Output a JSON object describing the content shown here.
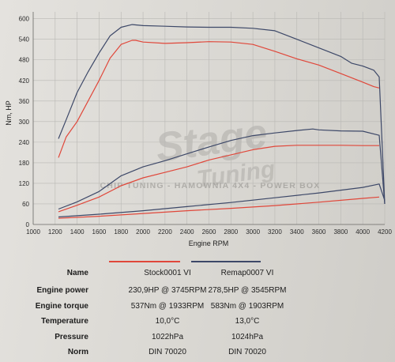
{
  "watermark": {
    "logo_text": "Stage Tuning",
    "line": "CHIP TUNING - HAMOWNIA 4X4 - POWER BOX"
  },
  "colors": {
    "stock": "#e0473a",
    "remap": "#3d4868",
    "grid": "#b9b8b4"
  },
  "chart_data": {
    "type": "line",
    "xlabel": "Engine RPM",
    "ylabel": "Nm, HP",
    "xlim": [
      1000,
      4200
    ],
    "ylim": [
      0,
      620
    ],
    "x_ticks": [
      1000,
      1200,
      1400,
      1600,
      1800,
      2000,
      2200,
      2400,
      2600,
      2800,
      3000,
      3200,
      3400,
      3600,
      3800,
      4000,
      4200
    ],
    "y_ticks": [
      0,
      60,
      120,
      180,
      240,
      300,
      360,
      420,
      480,
      540,
      600
    ],
    "grid": true,
    "series": [
      {
        "name": "Stock0001 VI",
        "quantity": "torque",
        "x": [
          1230,
          1300,
          1400,
          1500,
          1600,
          1700,
          1800,
          1900,
          1933,
          2000,
          2200,
          2400,
          2600,
          2800,
          3000,
          3200,
          3400,
          3600,
          3800,
          4000,
          4100,
          4150
        ],
        "y": [
          195,
          255,
          300,
          360,
          420,
          485,
          525,
          537,
          537,
          532,
          528,
          530,
          533,
          532,
          525,
          505,
          483,
          465,
          440,
          415,
          402,
          398
        ]
      },
      {
        "name": "Remap0007 VI",
        "quantity": "torque",
        "x": [
          1230,
          1300,
          1400,
          1500,
          1600,
          1700,
          1800,
          1900,
          1903,
          2000,
          2200,
          2400,
          2600,
          2800,
          3000,
          3200,
          3400,
          3600,
          3800,
          3900,
          4000,
          4100,
          4150,
          4200
        ],
        "y": [
          250,
          305,
          385,
          445,
          500,
          550,
          575,
          583,
          583,
          580,
          578,
          576,
          575,
          575,
          572,
          565,
          540,
          515,
          490,
          470,
          462,
          450,
          430,
          60
        ]
      },
      {
        "name": "Stock0001 VI",
        "quantity": "power",
        "x": [
          1230,
          1400,
          1600,
          1800,
          2000,
          2200,
          2400,
          2600,
          2800,
          3000,
          3200,
          3400,
          3600,
          3745,
          3800,
          4000,
          4150
        ],
        "y": [
          37,
          56,
          80,
          113,
          136,
          152,
          168,
          188,
          203,
          218,
          228,
          231,
          231,
          230.9,
          231,
          230,
          230
        ]
      },
      {
        "name": "Remap0007 VI",
        "quantity": "power",
        "x": [
          1230,
          1400,
          1600,
          1800,
          2000,
          2200,
          2400,
          2600,
          2800,
          3000,
          3200,
          3400,
          3545,
          3600,
          3800,
          4000,
          4150,
          4200
        ],
        "y": [
          45,
          66,
          96,
          142,
          168,
          186,
          206,
          226,
          245,
          259,
          267,
          274,
          278.5,
          276,
          273,
          272,
          260,
          60
        ]
      },
      {
        "name": "Stock0001 VI",
        "quantity": "loss",
        "x": [
          1230,
          1600,
          2000,
          2400,
          2800,
          3200,
          3600,
          4000,
          4150
        ],
        "y": [
          18,
          24,
          32,
          40,
          47,
          55,
          65,
          76,
          80
        ]
      },
      {
        "name": "Remap0007 VI",
        "quantity": "loss",
        "x": [
          1230,
          1600,
          2000,
          2400,
          2800,
          3200,
          3600,
          4000,
          4150,
          4200
        ],
        "y": [
          22,
          30,
          40,
          52,
          64,
          78,
          92,
          108,
          118,
          70
        ]
      }
    ]
  },
  "legend": {
    "headers": {
      "name": "Name",
      "stock": "Stock0001 VI",
      "remap": "Remap0007 VI"
    },
    "rows": [
      {
        "label": "Engine power",
        "stock": "230,9HP @  3745RPM",
        "remap": "278,5HP @  3545RPM"
      },
      {
        "label": "Engine torque",
        "stock": "537Nm @ 1933RPM",
        "remap": "583Nm @ 1903RPM"
      },
      {
        "label": "Temperature",
        "stock": "10,0°C",
        "remap": "13,0°C"
      },
      {
        "label": "Pressure",
        "stock": "1022hPa",
        "remap": "1024hPa"
      },
      {
        "label": "Norm",
        "stock": "DIN 70020",
        "remap": "DIN 70020"
      }
    ]
  }
}
